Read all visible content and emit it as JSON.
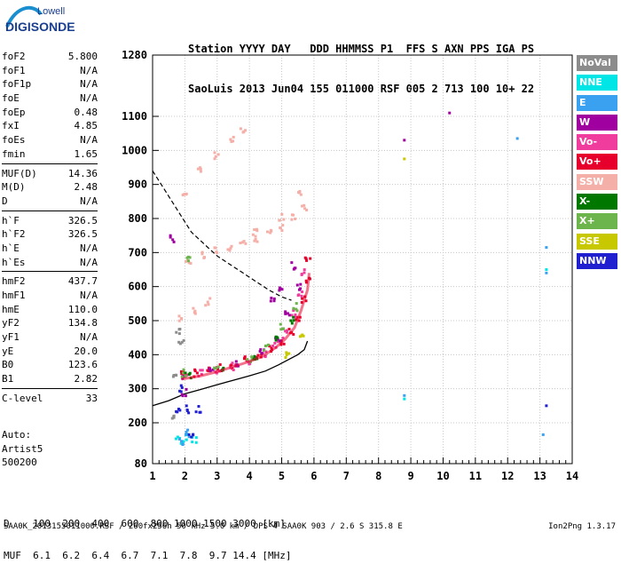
{
  "logo": {
    "brand_top": "Lowell",
    "brand_bottom": "DIGISONDE"
  },
  "header": {
    "line1": "Station YYYY DAY   DDD HHMMSS P1  FFS S AXN PPS IGA PS",
    "line2": "SaoLuis 2013 Jun04 155 011000 RSF 005 2 713 100 10+ 22"
  },
  "params": [
    {
      "label": "foF2",
      "value": "5.800"
    },
    {
      "label": "foF1",
      "value": "N/A"
    },
    {
      "label": "foF1p",
      "value": "N/A"
    },
    {
      "label": "foE",
      "value": "N/A"
    },
    {
      "label": "foEp",
      "value": "0.48"
    },
    {
      "label": "fxI",
      "value": "4.85"
    },
    {
      "label": "foEs",
      "value": "N/A"
    },
    {
      "label": "fmin",
      "value": "1.65"
    },
    {
      "sep": true
    },
    {
      "label": "MUF(D)",
      "value": "14.36"
    },
    {
      "label": "M(D)",
      "value": "2.48"
    },
    {
      "label": "D",
      "value": "N/A"
    },
    {
      "sep": true
    },
    {
      "label": "h`F",
      "value": "326.5"
    },
    {
      "label": "h`F2",
      "value": "326.5"
    },
    {
      "label": "h`E",
      "value": "N/A"
    },
    {
      "label": "h`Es",
      "value": "N/A"
    },
    {
      "sep": true
    },
    {
      "label": "hmF2",
      "value": "437.7"
    },
    {
      "label": "hmF1",
      "value": "N/A"
    },
    {
      "label": "hmE",
      "value": "110.0"
    },
    {
      "label": "yF2",
      "value": "134.8"
    },
    {
      "label": "yF1",
      "value": "N/A"
    },
    {
      "label": "yE",
      "value": "20.0"
    },
    {
      "label": "B0",
      "value": "123.6"
    },
    {
      "label": "B1",
      "value": "2.82"
    },
    {
      "sep": true
    },
    {
      "label": "C-level",
      "value": "33"
    }
  ],
  "auto": {
    "line1": "Auto:",
    "line2": "Artist5",
    "line3": "500200"
  },
  "muf_table": {
    "line1": "D    100  200  400  600  800 1000 1500 3000 [km]",
    "line2": "MUF  6.1  6.2  6.4  6.7  7.1  7.8  9.7 14.4 [MHz]"
  },
  "footer": {
    "left": "SAA0K_2013155011000.RSF / 260fx256h 50 kHz 5.0 km / DPS-4 SAA0K 903 / 2.6 S 315.8 E",
    "right": "Ion2Png 1.3.17"
  },
  "legend": [
    {
      "label": "NoVal",
      "color": "#8c8c8c"
    },
    {
      "label": "NNE",
      "color": "#00e6e6"
    },
    {
      "label": "E",
      "color": "#3aa0f0"
    },
    {
      "label": "W",
      "color": "#a000a0"
    },
    {
      "label": "Vo-",
      "color": "#f03c9c"
    },
    {
      "label": "Vo+",
      "color": "#e8002c"
    },
    {
      "label": "SSW",
      "color": "#f4b0a8"
    },
    {
      "label": "X-",
      "color": "#007800"
    },
    {
      "label": "X+",
      "color": "#6cb44c"
    },
    {
      "label": "SSE",
      "color": "#c8c800"
    },
    {
      "label": "NNW",
      "color": "#2020d0"
    }
  ],
  "chart_data": {
    "type": "scatter",
    "xlabel": "",
    "ylabel": "",
    "xlim": [
      1,
      14
    ],
    "ylim": [
      80,
      1280
    ],
    "x_ticks": [
      1,
      2,
      3,
      4,
      5,
      6,
      7,
      8,
      9,
      10,
      11,
      12,
      13,
      14
    ],
    "y_ticks": [
      80,
      200,
      300,
      400,
      500,
      600,
      700,
      800,
      900,
      1000,
      1100,
      1280
    ],
    "grid": true,
    "series": [
      {
        "name": "SSW",
        "color": "#f4b0a8",
        "points": [
          [
            1.9,
            505
          ],
          [
            2.3,
            530
          ],
          [
            2.7,
            555
          ],
          [
            2.1,
            675
          ],
          [
            2.6,
            690
          ],
          [
            3.0,
            705
          ],
          [
            3.4,
            715
          ],
          [
            3.8,
            730
          ],
          [
            4.2,
            740
          ],
          [
            4.6,
            755
          ],
          [
            5.0,
            775
          ],
          [
            5.4,
            800
          ],
          [
            5.7,
            830
          ],
          [
            4.2,
            760
          ],
          [
            5.0,
            805
          ],
          [
            5.6,
            880
          ],
          [
            2.0,
            880
          ],
          [
            2.5,
            940
          ],
          [
            3.0,
            985
          ],
          [
            3.5,
            1030
          ],
          [
            3.8,
            1055
          ]
        ]
      },
      {
        "name": "Vo+",
        "color": "#e8002c",
        "points": [
          [
            1.9,
            340
          ],
          [
            2.3,
            345
          ],
          [
            2.7,
            355
          ],
          [
            3.1,
            360
          ],
          [
            3.5,
            370
          ],
          [
            3.9,
            385
          ],
          [
            4.3,
            400
          ],
          [
            4.7,
            420
          ],
          [
            5.0,
            440
          ],
          [
            5.3,
            470
          ],
          [
            5.5,
            500
          ],
          [
            5.7,
            560
          ],
          [
            5.8,
            620
          ],
          [
            5.8,
            680
          ]
        ]
      },
      {
        "name": "Vo-",
        "color": "#f03c9c",
        "points": [
          [
            2.0,
            335
          ],
          [
            2.5,
            345
          ],
          [
            3.0,
            355
          ],
          [
            3.5,
            365
          ],
          [
            4.0,
            380
          ],
          [
            4.5,
            405
          ],
          [
            4.8,
            430
          ],
          [
            5.1,
            460
          ],
          [
            5.4,
            520
          ],
          [
            5.6,
            580
          ],
          [
            5.7,
            640
          ]
        ]
      },
      {
        "name": "W",
        "color": "#a000a0",
        "points": [
          [
            2.0,
            338
          ],
          [
            2.8,
            352
          ],
          [
            3.6,
            372
          ],
          [
            4.4,
            410
          ],
          [
            4.9,
            450
          ],
          [
            5.2,
            520
          ],
          [
            5.5,
            600
          ],
          [
            4.7,
            560
          ],
          [
            5.0,
            590
          ],
          [
            5.4,
            660
          ],
          [
            1.6,
            740
          ],
          [
            2.0,
            290
          ],
          [
            8.8,
            1030
          ],
          [
            10.2,
            1110
          ]
        ]
      },
      {
        "name": "X+",
        "color": "#6cb44c",
        "points": [
          [
            2.0,
            345
          ],
          [
            3.0,
            360
          ],
          [
            4.0,
            390
          ],
          [
            4.5,
            420
          ],
          [
            5.0,
            480
          ],
          [
            5.4,
            540
          ],
          [
            2.1,
            680
          ]
        ]
      },
      {
        "name": "X-",
        "color": "#007800",
        "points": [
          [
            2.1,
            340
          ],
          [
            3.2,
            362
          ],
          [
            4.2,
            395
          ],
          [
            4.9,
            450
          ],
          [
            5.3,
            500
          ]
        ]
      },
      {
        "name": "SSE",
        "color": "#c8c800",
        "points": [
          [
            5.2,
            400
          ],
          [
            5.6,
            450
          ],
          [
            8.8,
            975
          ]
        ]
      },
      {
        "name": "NNE",
        "color": "#00e6e6",
        "points": [
          [
            1.8,
            150
          ],
          [
            2.0,
            155
          ],
          [
            2.3,
            150
          ],
          [
            13.2,
            650
          ],
          [
            8.8,
            270
          ]
        ]
      },
      {
        "name": "E",
        "color": "#3aa0f0",
        "points": [
          [
            1.9,
            145
          ],
          [
            2.1,
            170
          ],
          [
            13.2,
            715
          ],
          [
            13.2,
            640
          ],
          [
            12.3,
            1035
          ],
          [
            8.8,
            280
          ],
          [
            13.1,
            165
          ]
        ]
      },
      {
        "name": "NNW",
        "color": "#2020d0",
        "points": [
          [
            1.8,
            240
          ],
          [
            2.1,
            240
          ],
          [
            2.4,
            240
          ],
          [
            1.9,
            300
          ],
          [
            2.2,
            160
          ],
          [
            13.2,
            250
          ]
        ]
      },
      {
        "name": "NoVal",
        "color": "#8c8c8c",
        "points": [
          [
            1.7,
            330
          ],
          [
            1.9,
            440
          ],
          [
            1.8,
            470
          ],
          [
            1.6,
            220
          ]
        ]
      }
    ],
    "profile_solid": [
      [
        1,
        250
      ],
      [
        1.5,
        265
      ],
      [
        2,
        285
      ],
      [
        2.5,
        298
      ],
      [
        3,
        312
      ],
      [
        3.5,
        325
      ],
      [
        4,
        338
      ],
      [
        4.5,
        352
      ],
      [
        4.9,
        370
      ],
      [
        5.2,
        385
      ],
      [
        5.5,
        400
      ],
      [
        5.7,
        415
      ],
      [
        5.8,
        440
      ]
    ],
    "profile_dashed": [
      [
        1,
        940
      ],
      [
        1.4,
        880
      ],
      [
        1.8,
        820
      ],
      [
        2.2,
        760
      ],
      [
        2.6,
        725
      ],
      [
        3.0,
        690
      ],
      [
        3.4,
        665
      ],
      [
        3.8,
        640
      ],
      [
        4.2,
        615
      ],
      [
        4.6,
        590
      ],
      [
        5.0,
        570
      ],
      [
        5.3,
        560
      ]
    ],
    "profile_trace": [
      [
        1.9,
        328
      ],
      [
        2.5,
        338
      ],
      [
        3.0,
        350
      ],
      [
        3.5,
        365
      ],
      [
        4.0,
        380
      ],
      [
        4.4,
        395
      ],
      [
        4.8,
        420
      ],
      [
        5.1,
        445
      ],
      [
        5.4,
        480
      ],
      [
        5.6,
        530
      ],
      [
        5.8,
        590
      ],
      [
        5.85,
        640
      ]
    ]
  }
}
